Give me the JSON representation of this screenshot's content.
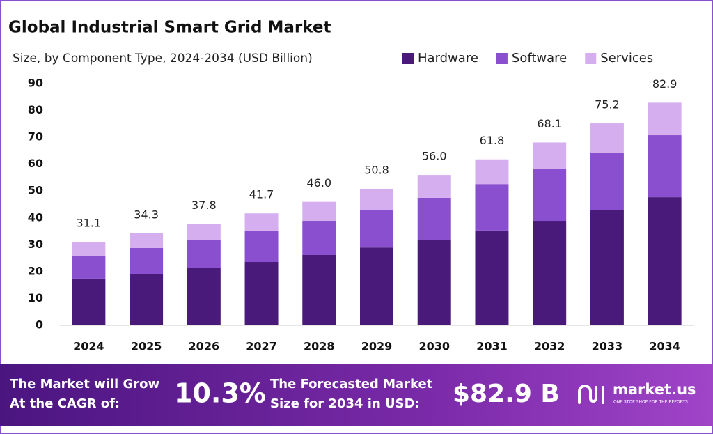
{
  "chart_data": {
    "type": "stacked_bar",
    "title": "Global Industrial Smart Grid Market",
    "subtitle": "Size, by Component Type, 2024-2034 (USD Billion)",
    "categories": [
      "2024",
      "2025",
      "2026",
      "2027",
      "2028",
      "2029",
      "2030",
      "2031",
      "2032",
      "2033",
      "2034"
    ],
    "series": [
      {
        "name": "Hardware",
        "color": "#4a1a7a",
        "values": [
          17.4,
          19.2,
          21.5,
          23.6,
          26.2,
          29.0,
          31.9,
          35.3,
          38.9,
          43.0,
          47.7
        ]
      },
      {
        "name": "Software",
        "color": "#8a4fcf",
        "values": [
          8.5,
          9.6,
          10.4,
          11.7,
          12.7,
          14.0,
          15.6,
          17.3,
          19.2,
          21.1,
          23.1
        ]
      },
      {
        "name": "Services",
        "color": "#d5aef0",
        "values": [
          5.2,
          5.5,
          5.9,
          6.4,
          7.1,
          7.8,
          8.5,
          9.2,
          10.0,
          11.1,
          12.1
        ]
      }
    ],
    "totals": [
      31.1,
      34.3,
      37.8,
      41.7,
      46.0,
      50.8,
      56.0,
      61.8,
      68.1,
      75.2,
      82.9
    ],
    "total_labels": [
      "31.1",
      "34.3",
      "37.8",
      "41.7",
      "46.0",
      "50.8",
      "56.0",
      "61.8",
      "68.1",
      "75.2",
      "82.9"
    ],
    "ylim": [
      0,
      90
    ],
    "yticks": [
      0,
      10,
      20,
      30,
      40,
      50,
      60,
      70,
      80,
      90
    ],
    "grid": false,
    "legend": "top-right"
  },
  "footer": {
    "grow_text": [
      "The Market will Grow",
      "At the CAGR of:"
    ],
    "cagr": "10.3%",
    "forecast_text": [
      "The Forecasted Market",
      "Size for 2034 in USD:"
    ],
    "forecast_value": "$82.9 B",
    "brand": "market.us",
    "tagline": "ONE STOP SHOP FOR THE REPORTS"
  }
}
